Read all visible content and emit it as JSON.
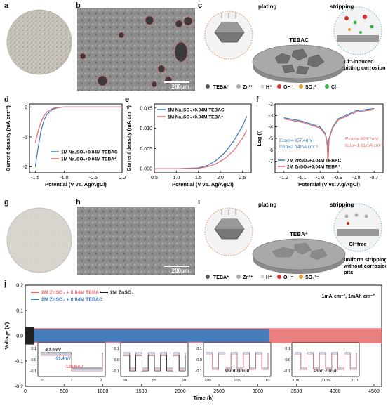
{
  "labels": {
    "a": "a",
    "b": "b",
    "c": "c",
    "d": "d",
    "e": "e",
    "f": "f",
    "g": "g",
    "h": "h",
    "i": "i",
    "j": "j"
  },
  "sem_b": {
    "scale": "200μm"
  },
  "sem_h": {
    "scale": "200μm"
  },
  "schematic_c": {
    "plating": "plating",
    "stripping": "stripping",
    "center_label": "TEBAC",
    "callout_line1": "Cl⁻-induced",
    "callout_line2": "pitting corrosion",
    "legend": [
      "TEBA⁺",
      "Zn²⁺",
      "H⁺",
      "OH⁻",
      "SO₄²⁻",
      "Cl⁻"
    ]
  },
  "schematic_i": {
    "plating": "plating",
    "stripping": "stripping",
    "center_label": "TEBA⁺",
    "cl_free": "Cl⁻free",
    "callout_line1": "uniform stripping",
    "callout_line2": "without corrosion",
    "callout_line3": "pits",
    "legend": [
      "TEBA⁺",
      "Zn²⁺",
      "H⁺",
      "OH⁻",
      "SO₄²⁻"
    ]
  },
  "colors": {
    "blue": "#3b7bbf",
    "red": "#e86a6a",
    "black": "#222222"
  },
  "chart_data": [
    {
      "id": "d",
      "type": "line",
      "xlabel": "Potential (V vs. Ag/AgCl)",
      "ylabel": "Current density (mA cm⁻²)",
      "xlim": [
        -1.6,
        0.0
      ],
      "ylim": [
        -2.2,
        0.1
      ],
      "xticks": [
        "-1.5",
        "-1.0",
        "-0.5",
        "0.0"
      ],
      "yticks": [
        "0",
        "-1",
        "-2"
      ],
      "series": [
        {
          "name": "1M Na₂SO₄+0.04M TEBAC",
          "color": "#3b7bbf",
          "x": [
            -1.5,
            -1.45,
            -1.4,
            -1.35,
            -1.3,
            -1.2,
            -1.1,
            -1.0,
            -0.5,
            0.0
          ],
          "y": [
            -2.0,
            -1.35,
            -0.8,
            -0.45,
            -0.25,
            -0.08,
            -0.02,
            0.0,
            0.0,
            0.0
          ]
        },
        {
          "name": "1M Na₂SO₄+0.04M TEBA⁺",
          "color": "#e86a6a",
          "x": [
            -1.5,
            -1.45,
            -1.4,
            -1.35,
            -1.3,
            -1.2,
            -1.1,
            -1.0,
            -0.5,
            0.0
          ],
          "y": [
            -1.2,
            -0.8,
            -0.5,
            -0.3,
            -0.17,
            -0.05,
            -0.01,
            0.0,
            0.0,
            0.0
          ]
        }
      ]
    },
    {
      "id": "e",
      "type": "line",
      "xlabel": "Potential (V vs. Ag/AgCl)",
      "ylabel": "Current density (mA cm⁻²)",
      "xlim": [
        0.5,
        2.7
      ],
      "ylim": [
        -0.001,
        0.016
      ],
      "xticks": [
        "0.5",
        "1.0",
        "1.5",
        "2.0",
        "2.5"
      ],
      "yticks": [
        "0.000",
        "0.005",
        "0.010",
        "0.015"
      ],
      "series": [
        {
          "name": "1M Na₂SO₄+0.04M TEBAC",
          "color": "#3b7bbf",
          "x": [
            0.5,
            1.0,
            1.5,
            1.7,
            1.9,
            2.1,
            2.3,
            2.5,
            2.6
          ],
          "y": [
            0.0,
            0.0,
            0.0002,
            0.0008,
            0.002,
            0.004,
            0.0068,
            0.0105,
            0.013
          ]
        },
        {
          "name": "1M Na₂SO₄+0.04M TEBA⁺",
          "color": "#e86a6a",
          "x": [
            0.5,
            1.0,
            1.5,
            1.7,
            1.9,
            2.1,
            2.3,
            2.5,
            2.6
          ],
          "y": [
            0.0,
            0.0,
            0.0001,
            0.0005,
            0.0012,
            0.0025,
            0.0045,
            0.0075,
            0.0095
          ]
        }
      ]
    },
    {
      "id": "f",
      "type": "line",
      "xlabel": "Potential (V vs. Ag/AgCl)",
      "ylabel": "Log (I)",
      "xlim": [
        -1.25,
        -0.65
      ],
      "ylim": [
        -8,
        -2
      ],
      "xticks": [
        "-1.2",
        "-1.1",
        "-1.0",
        "-0.9",
        "-0.8",
        "-0.7"
      ],
      "yticks": [
        "-7",
        "-6",
        "-5",
        "-4",
        "-3",
        "-2"
      ],
      "annotations_blue": [
        "Ecorr=-957.4mV",
        "Icorr=2.14mA cm⁻²"
      ],
      "annotations_red": [
        "Ecorr=-955.7mV",
        "Icorr=1.61mA cm⁻²"
      ],
      "series": [
        {
          "name": "2M ZnSO₄+0.04M TEBAC",
          "color": "#3b7bbf",
          "x": [
            -1.2,
            -1.1,
            -1.0,
            -0.97,
            -0.96,
            -0.957,
            -0.95,
            -0.93,
            -0.9,
            -0.8,
            -0.7
          ],
          "y": [
            -3.2,
            -3.5,
            -4.0,
            -4.6,
            -5.4,
            -6.8,
            -5.0,
            -4.0,
            -3.3,
            -2.6,
            -2.4
          ]
        },
        {
          "name": "2M ZnSO₄+0.04M TEBA⁺",
          "color": "#e86a6a",
          "x": [
            -1.2,
            -1.1,
            -1.0,
            -0.97,
            -0.96,
            -0.955,
            -0.95,
            -0.93,
            -0.9,
            -0.8,
            -0.7
          ],
          "y": [
            -3.3,
            -3.6,
            -4.1,
            -4.7,
            -5.6,
            -7.0,
            -5.1,
            -4.1,
            -3.4,
            -2.7,
            -2.5
          ]
        }
      ]
    },
    {
      "id": "j",
      "type": "line",
      "xlabel": "Time (h)",
      "ylabel": "Voltage (V)",
      "xlim": [
        0,
        4600
      ],
      "ylim": [
        -0.2,
        0.2
      ],
      "xticks": [
        "0",
        "500",
        "1000",
        "1500",
        "2000",
        "2500",
        "3000",
        "3500",
        "4000",
        "4500"
      ],
      "yticks": [
        "-0.2",
        "-0.1",
        "0.0",
        "0.1",
        "0.2"
      ],
      "condition": "1mA·cm⁻², 1mAh·cm⁻²",
      "series": [
        {
          "name": "2M ZnSO₄ + 0.04M TEBA⁺",
          "color": "#e86a6a",
          "x_end": 4600,
          "amplitude": 0.03
        },
        {
          "name": "2M ZnSO₄ + 0.04M TEBAC",
          "color": "#3b7bbf",
          "x_end": 3150,
          "amplitude": 0.025
        },
        {
          "name": "2M ZnSO₄",
          "color": "#222222",
          "x_end": 110,
          "amplitude": 0.035
        }
      ],
      "insets": [
        {
          "xticks": [
            "0",
            "1",
            "2"
          ],
          "yticks": [
            "0.1",
            "0.0",
            "-0.1"
          ],
          "notes": [
            "-62.0mV",
            "-95.4mV",
            "-128.6mV"
          ]
        },
        {
          "xticks": [
            "50",
            "55",
            "60"
          ],
          "yticks": [
            "0.1",
            "0.0",
            "-0.1"
          ],
          "notes": []
        },
        {
          "xticks": [
            "100",
            "105",
            "110"
          ],
          "yticks": [
            "0.1",
            "0.0",
            "-0.1"
          ],
          "notes": [
            "short circuit"
          ]
        },
        {
          "xticks": [
            "3100",
            "3105",
            "3110"
          ],
          "yticks": [
            "0.1",
            "0.0",
            "-0.1"
          ],
          "notes": [
            "short circuit"
          ]
        }
      ]
    }
  ]
}
